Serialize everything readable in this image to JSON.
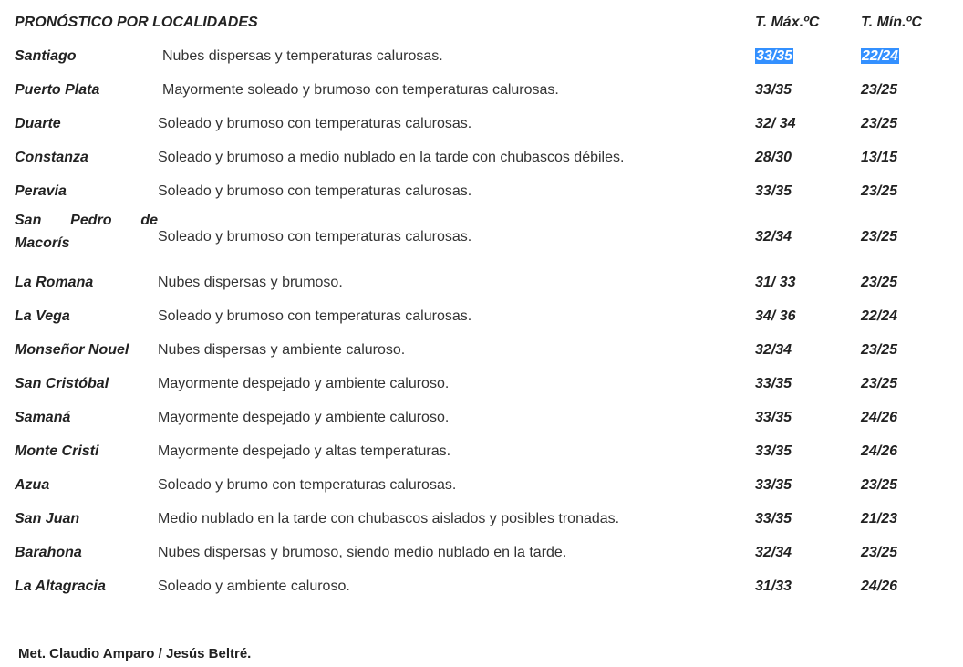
{
  "header": {
    "title": "PRONÓSTICO POR LOCALIDADES",
    "tmax": "T. Máx.ºC",
    "tmin": "T. Mín.ºC"
  },
  "rows": [
    {
      "name": "Santiago",
      "desc": "Nubes dispersas y temperaturas calurosas.",
      "tmax": "33/35",
      "tmin": "22/24",
      "highlighted": true
    },
    {
      "name": "Puerto Plata",
      "desc": "Mayormente soleado y brumoso con temperaturas calurosas.",
      "tmax": "33/35",
      "tmin": "23/25"
    },
    {
      "name": "Duarte",
      "desc": "Soleado y brumoso  con temperaturas calurosas.",
      "tmax": "32/ 34",
      "tmin": "23/25"
    },
    {
      "name": "Constanza",
      "desc": "Soleado y brumoso a medio nublado en la tarde con chubascos débiles.",
      "tmax": "28/30",
      "tmin": "13/15"
    },
    {
      "name": "Peravia",
      "desc": "Soleado y brumoso con temperaturas calurosas.",
      "tmax": "33/35",
      "tmin": "23/25"
    },
    {
      "name": "San Pedro de Macorís",
      "desc": "Soleado y brumoso  con temperaturas calurosas.",
      "tmax": "32/34",
      "tmin": "23/25"
    },
    {
      "name": "La Romana",
      "desc": "Nubes dispersas y brumoso.",
      "tmax": "31/ 33",
      "tmin": "23/25"
    },
    {
      "name": "La Vega",
      "desc": "Soleado y brumoso con temperaturas calurosas.",
      "tmax": "34/ 36",
      "tmin": "22/24"
    },
    {
      "name": "Monseñor Nouel",
      "desc": "Nubes dispersas y ambiente caluroso.",
      "tmax": "32/34",
      "tmin": "23/25"
    },
    {
      "name": "San Cristóbal",
      "desc": "Mayormente despejado y ambiente caluroso.",
      "tmax": "33/35",
      "tmin": "23/25"
    },
    {
      "name": "Samaná",
      "desc": "Mayormente despejado y ambiente caluroso.",
      "tmax": "33/35",
      "tmin": "24/26"
    },
    {
      "name": "Monte Cristi",
      "desc": "Mayormente despejado y altas temperaturas.",
      "tmax": "33/35",
      "tmin": "24/26"
    },
    {
      "name": "Azua",
      "desc": "Soleado y brumo con temperaturas calurosas.",
      "tmax": "33/35",
      "tmin": "23/25"
    },
    {
      "name": "San Juan",
      "desc": "Medio nublado en la tarde con chubascos aislados y posibles tronadas.",
      "tmax": "33/35",
      "tmin": "21/23"
    },
    {
      "name": "Barahona",
      "desc": "Nubes dispersas y brumoso, siendo medio nublado en la tarde.",
      "tmax": "32/34",
      "tmin": "23/25"
    },
    {
      "name": "La Altagracia",
      "desc": "Soleado  y ambiente caluroso.",
      "tmax": "31/33",
      "tmin": "24/26"
    }
  ],
  "footer": "Met. Claudio Amparo / Jesús Beltré.",
  "colors": {
    "highlight": "#3390ff"
  }
}
